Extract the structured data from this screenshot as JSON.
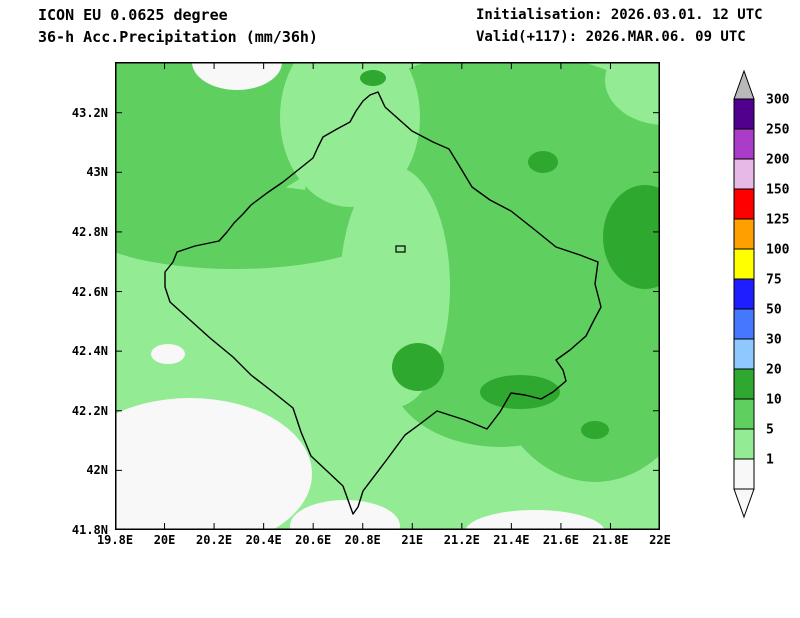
{
  "header": {
    "model": "ICON EU 0.0625 degree",
    "product": "36-h Acc.Precipitation (mm/36h)",
    "initialisation": "Initialisation: 2026.03.01. 12 UTC",
    "valid": "Valid(+117): 2026.MAR.06. 09 UTC"
  },
  "chart_data": {
    "type": "heatmap",
    "title": "36-h Acc.Precipitation (mm/36h)",
    "model": "ICON EU 0.0625 degree",
    "initialisation": "2026.03.01. 12 UTC",
    "valid": "2026.MAR.06. 09 UTC",
    "lead": "+117",
    "units": "mm/36h",
    "x_axis": {
      "ticks": [
        "19.8E",
        "20E",
        "20.2E",
        "20.4E",
        "20.6E",
        "20.8E",
        "21E",
        "21.2E",
        "21.4E",
        "21.6E",
        "21.8E",
        "22E"
      ],
      "values": [
        19.8,
        20,
        20.2,
        20.4,
        20.6,
        20.8,
        21,
        21.2,
        21.4,
        21.6,
        21.8,
        22
      ],
      "range": [
        19.8,
        22
      ]
    },
    "y_axis": {
      "ticks": [
        "43.2N",
        "43N",
        "42.8N",
        "42.6N",
        "42.4N",
        "42.2N",
        "42N",
        "41.8N"
      ],
      "values": [
        43.2,
        43,
        42.8,
        42.6,
        42.4,
        42.2,
        42,
        41.8
      ],
      "range": [
        41.8,
        43.37
      ]
    },
    "colorbar": {
      "levels": [
        "300",
        "250",
        "200",
        "150",
        "125",
        "100",
        "75",
        "50",
        "30",
        "20",
        "10",
        "5",
        "1"
      ],
      "segment_colors_top_to_bottom": [
        "#50008c",
        "#aa3cc8",
        "#e6b9e6",
        "#ff0000",
        "#ff9f00",
        "#ffff00",
        "#1e1eff",
        "#4677ff",
        "#8fc7ff",
        "#2fa82f",
        "#5fcf5f",
        "#93ec93"
      ],
      "overflow_color": "#b9b9b9",
      "underflow_color": "#f8f8f8"
    },
    "visible_value_classes_on_map": [
      "<1",
      "1-5",
      "5-10",
      "10-20"
    ]
  },
  "palette": {
    "lt1": "#f8f8f8",
    "g1": "#93ec93",
    "g2": "#5fcf5f",
    "g3": "#2fa82f",
    "border": "#000000"
  }
}
